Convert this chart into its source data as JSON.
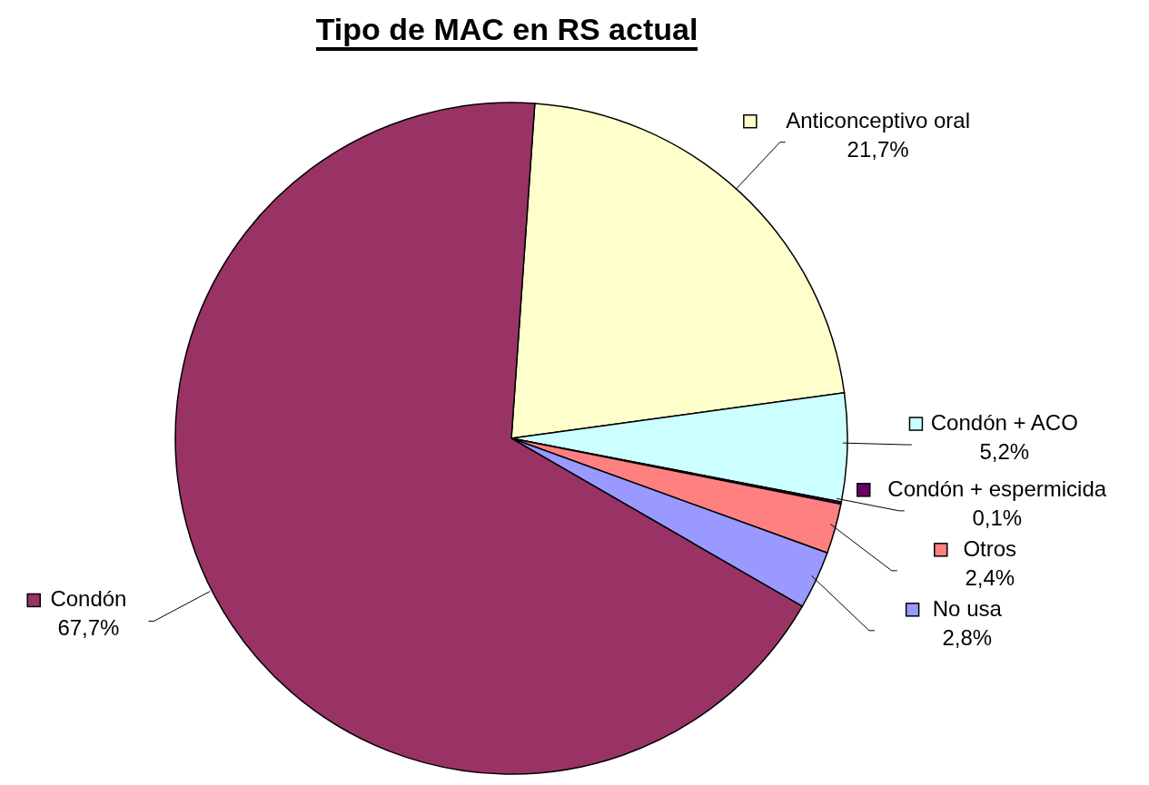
{
  "chart_data": {
    "type": "pie",
    "title": "Tipo de MAC en RS actual",
    "categories": [
      "Anticonceptivo oral",
      "Condón + ACO",
      "Condón + espermicida",
      "Otros",
      "No usa",
      "Condón"
    ],
    "values": [
      21.7,
      5.2,
      0.1,
      2.4,
      2.8,
      67.7
    ],
    "value_labels": [
      "21,7%",
      "5,2%",
      "0,1%",
      "2,4%",
      "2,8%",
      "67,7%"
    ],
    "colors": [
      "#ffffcc",
      "#ccffff",
      "#660066",
      "#ff8080",
      "#9999ff",
      "#993366"
    ],
    "legend": "right"
  }
}
